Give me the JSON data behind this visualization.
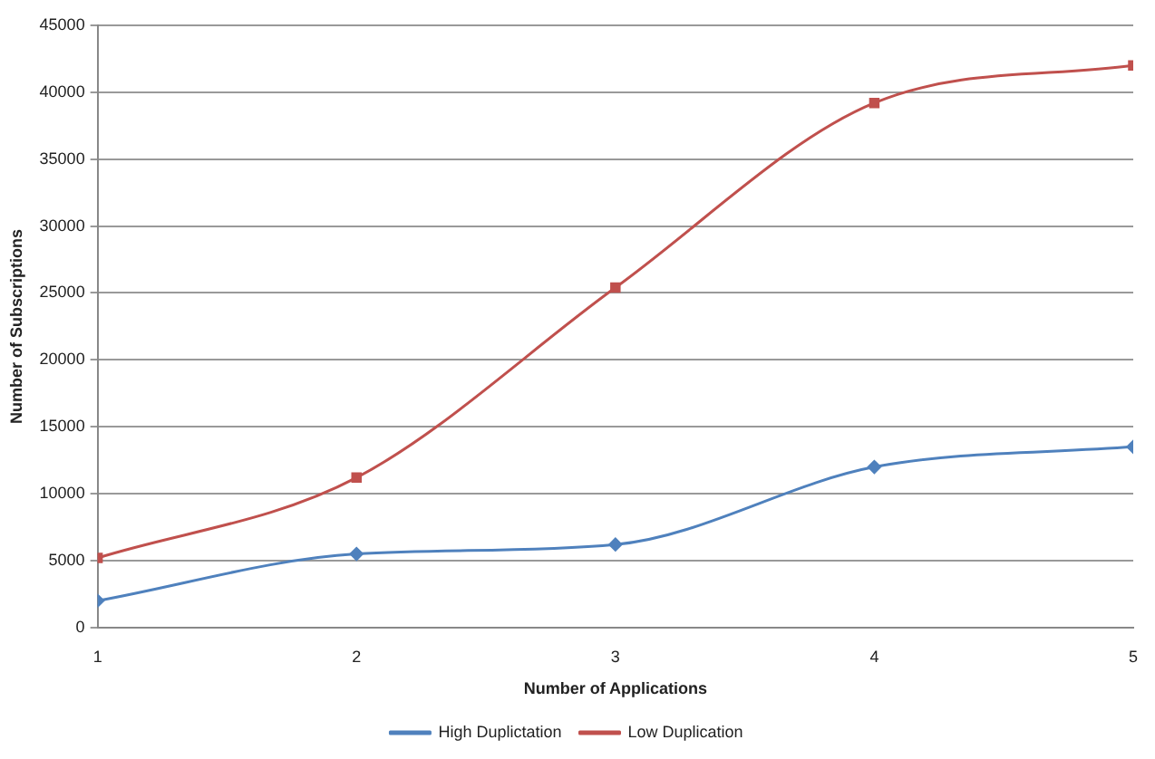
{
  "chart_data": {
    "type": "line",
    "xlabel": "Number of Applications",
    "ylabel": "Number of Subscriptions",
    "x": [
      1,
      2,
      3,
      4,
      5
    ],
    "xlim": [
      1,
      5
    ],
    "xticks": [
      1,
      2,
      3,
      4,
      5
    ],
    "ylim": [
      0,
      45000
    ],
    "yticks": [
      0,
      5000,
      10000,
      15000,
      20000,
      25000,
      30000,
      35000,
      40000,
      45000
    ],
    "grid": "y",
    "legend": "bottom",
    "series": [
      {
        "name": "High Duplictation",
        "color": "#4f81bd",
        "marker": "diamond",
        "values": [
          2000,
          5500,
          6200,
          12000,
          13500
        ]
      },
      {
        "name": "Low Duplication",
        "color": "#c0504d",
        "marker": "square",
        "values": [
          5200,
          11200,
          25400,
          39200,
          42000
        ]
      }
    ]
  }
}
